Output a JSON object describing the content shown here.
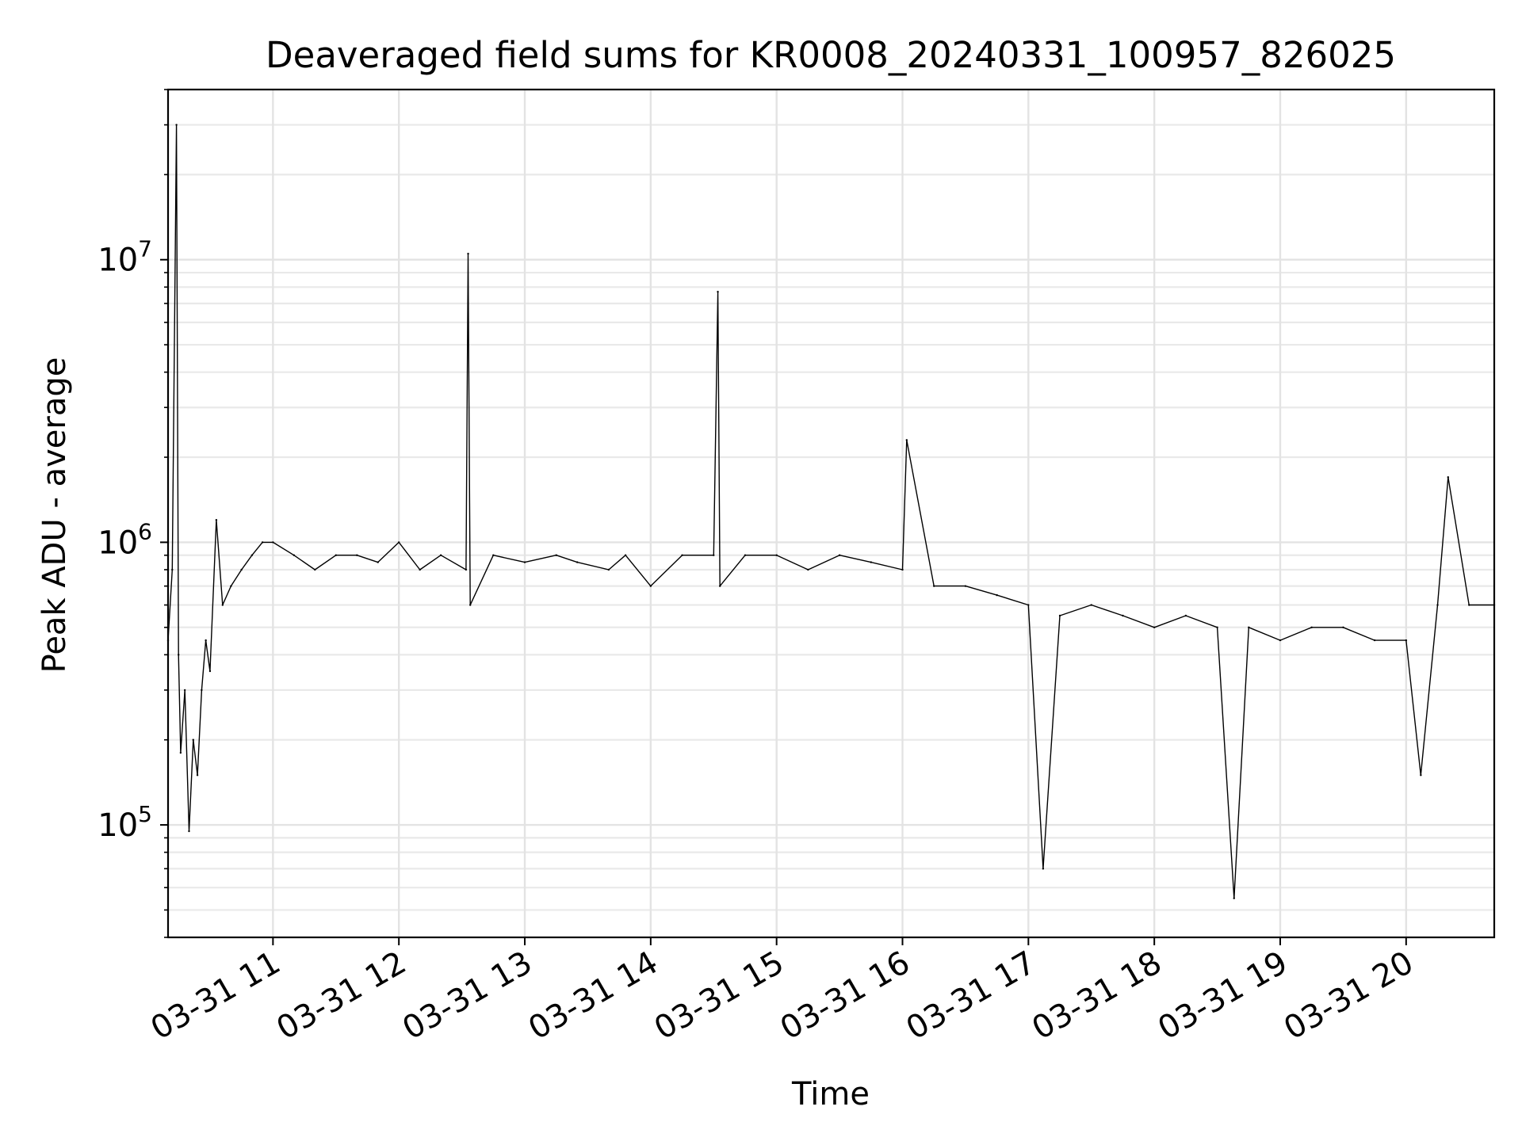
{
  "chart_data": {
    "type": "line",
    "title": "Deaveraged field sums for KR0008_20240331_100957_826025",
    "xlabel": "Time",
    "ylabel": "Peak ADU - average",
    "xlim": [
      "2024-03-31 10:10",
      "2024-03-31 20:42"
    ],
    "ylim": [
      40000,
      40000000
    ],
    "yscale": "log",
    "grid": true,
    "grid_minor": true,
    "x_ticks": [
      {
        "t": "2024-03-31 11:00",
        "label": "03-31 11"
      },
      {
        "t": "2024-03-31 12:00",
        "label": "03-31 12"
      },
      {
        "t": "2024-03-31 13:00",
        "label": "03-31 13"
      },
      {
        "t": "2024-03-31 14:00",
        "label": "03-31 14"
      },
      {
        "t": "2024-03-31 15:00",
        "label": "03-31 15"
      },
      {
        "t": "2024-03-31 16:00",
        "label": "03-31 16"
      },
      {
        "t": "2024-03-31 17:00",
        "label": "03-31 17"
      },
      {
        "t": "2024-03-31 18:00",
        "label": "03-31 18"
      },
      {
        "t": "2024-03-31 19:00",
        "label": "03-31 19"
      },
      {
        "t": "2024-03-31 20:00",
        "label": "03-31 20"
      }
    ],
    "y_ticks": [
      {
        "value": 100000,
        "base": "10",
        "exp": "5"
      },
      {
        "value": 1000000,
        "base": "10",
        "exp": "6"
      },
      {
        "value": 10000000,
        "base": "10",
        "exp": "7"
      }
    ],
    "line_color": "#000000",
    "series": [
      {
        "x": [
          "2024-03-31 10:10",
          "2024-03-31 10:12",
          "2024-03-31 10:14",
          "2024-03-31 10:15",
          "2024-03-31 10:16",
          "2024-03-31 10:18",
          "2024-03-31 10:20",
          "2024-03-31 10:22",
          "2024-03-31 10:24",
          "2024-03-31 10:26",
          "2024-03-31 10:28",
          "2024-03-31 10:30",
          "2024-03-31 10:33",
          "2024-03-31 10:36",
          "2024-03-31 10:40",
          "2024-03-31 10:45",
          "2024-03-31 10:50",
          "2024-03-31 10:55",
          "2024-03-31 11:00",
          "2024-03-31 11:10",
          "2024-03-31 11:20",
          "2024-03-31 11:30",
          "2024-03-31 11:40",
          "2024-03-31 11:50",
          "2024-03-31 12:00",
          "2024-03-31 12:10",
          "2024-03-31 12:20",
          "2024-03-31 12:32",
          "2024-03-31 12:33",
          "2024-03-31 12:34",
          "2024-03-31 12:45",
          "2024-03-31 13:00",
          "2024-03-31 13:15",
          "2024-03-31 13:25",
          "2024-03-31 13:40",
          "2024-03-31 13:48",
          "2024-03-31 14:00",
          "2024-03-31 14:15",
          "2024-03-31 14:30",
          "2024-03-31 14:32",
          "2024-03-31 14:33",
          "2024-03-31 14:45",
          "2024-03-31 15:00",
          "2024-03-31 15:15",
          "2024-03-31 15:30",
          "2024-03-31 15:45",
          "2024-03-31 16:00",
          "2024-03-31 16:02",
          "2024-03-31 16:15",
          "2024-03-31 16:30",
          "2024-03-31 16:45",
          "2024-03-31 17:00",
          "2024-03-31 17:07",
          "2024-03-31 17:15",
          "2024-03-31 17:30",
          "2024-03-31 17:45",
          "2024-03-31 18:00",
          "2024-03-31 18:15",
          "2024-03-31 18:30",
          "2024-03-31 18:38",
          "2024-03-31 18:45",
          "2024-03-31 19:00",
          "2024-03-31 19:15",
          "2024-03-31 19:30",
          "2024-03-31 19:45",
          "2024-03-31 20:00",
          "2024-03-31 20:07",
          "2024-03-31 20:15",
          "2024-03-31 20:20",
          "2024-03-31 20:30",
          "2024-03-31 20:42"
        ],
        "y": [
          450000,
          800000,
          30000000,
          400000,
          180000,
          300000,
          95000,
          200000,
          150000,
          300000,
          450000,
          350000,
          1200000,
          600000,
          700000,
          800000,
          900000,
          1000000,
          1000000,
          900000,
          800000,
          900000,
          900000,
          850000,
          1000000,
          800000,
          900000,
          800000,
          10500000,
          600000,
          900000,
          850000,
          900000,
          850000,
          800000,
          900000,
          700000,
          900000,
          900000,
          7700000,
          700000,
          900000,
          900000,
          800000,
          900000,
          850000,
          800000,
          2300000,
          700000,
          700000,
          650000,
          600000,
          70000,
          550000,
          600000,
          550000,
          500000,
          550000,
          500000,
          55000,
          500000,
          450000,
          500000,
          500000,
          450000,
          450000,
          150000,
          600000,
          1700000,
          600000,
          600000
        ]
      }
    ]
  }
}
